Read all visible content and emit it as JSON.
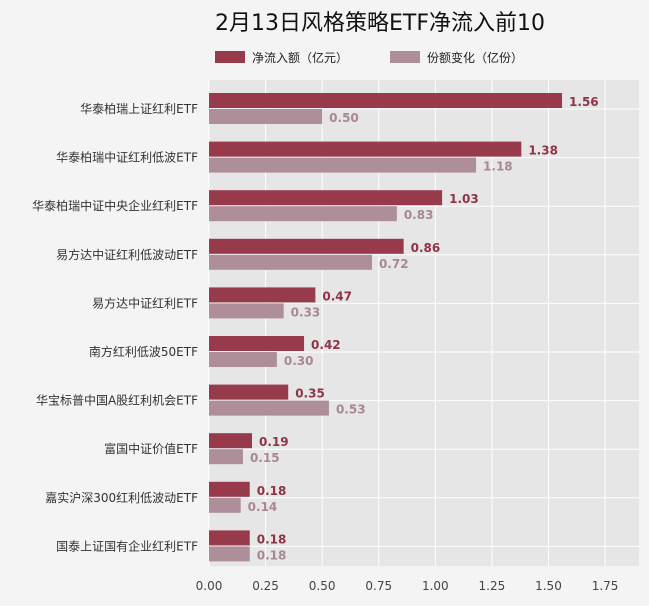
{
  "chart_data": {
    "type": "bar",
    "orientation": "horizontal",
    "title": "2月13日风格策略ETF净流入前10",
    "xlabel": "",
    "ylabel": "",
    "xlim": [
      0,
      1.9
    ],
    "xticks": [
      "0.00",
      "0.25",
      "0.50",
      "0.75",
      "1.00",
      "1.25",
      "1.50",
      "1.75"
    ],
    "grid": true,
    "legend_position": "top",
    "categories": [
      "华泰柏瑞上证红利ETF",
      "华泰柏瑞中证红利低波ETF",
      "华泰柏瑞中证中央企业红利ETF",
      "易方达中证红利低波动ETF",
      "易方达中证红利ETF",
      "南方红利低波50ETF",
      "华宝标普中国A股红利机会ETF",
      "富国中证价值ETF",
      "嘉实沪深300红利低波动ETF",
      "国泰上证国有企业红利ETF"
    ],
    "series": [
      {
        "name": "净流入额（亿元）",
        "color": "#963a4c",
        "values": [
          1.56,
          1.38,
          1.03,
          0.86,
          0.47,
          0.42,
          0.35,
          0.19,
          0.18,
          0.18
        ],
        "labels": [
          "1.56",
          "1.38",
          "1.03",
          "0.86",
          "0.47",
          "0.42",
          "0.35",
          "0.19",
          "0.18",
          "0.18"
        ]
      },
      {
        "name": "份额变化（亿份）",
        "color": "#ae8e98",
        "values": [
          0.5,
          1.18,
          0.83,
          0.72,
          0.33,
          0.3,
          0.53,
          0.15,
          0.14,
          0.18
        ],
        "labels": [
          "0.50",
          "1.18",
          "0.83",
          "0.72",
          "0.33",
          "0.30",
          "0.53",
          "0.15",
          "0.14",
          "0.18"
        ]
      }
    ]
  }
}
